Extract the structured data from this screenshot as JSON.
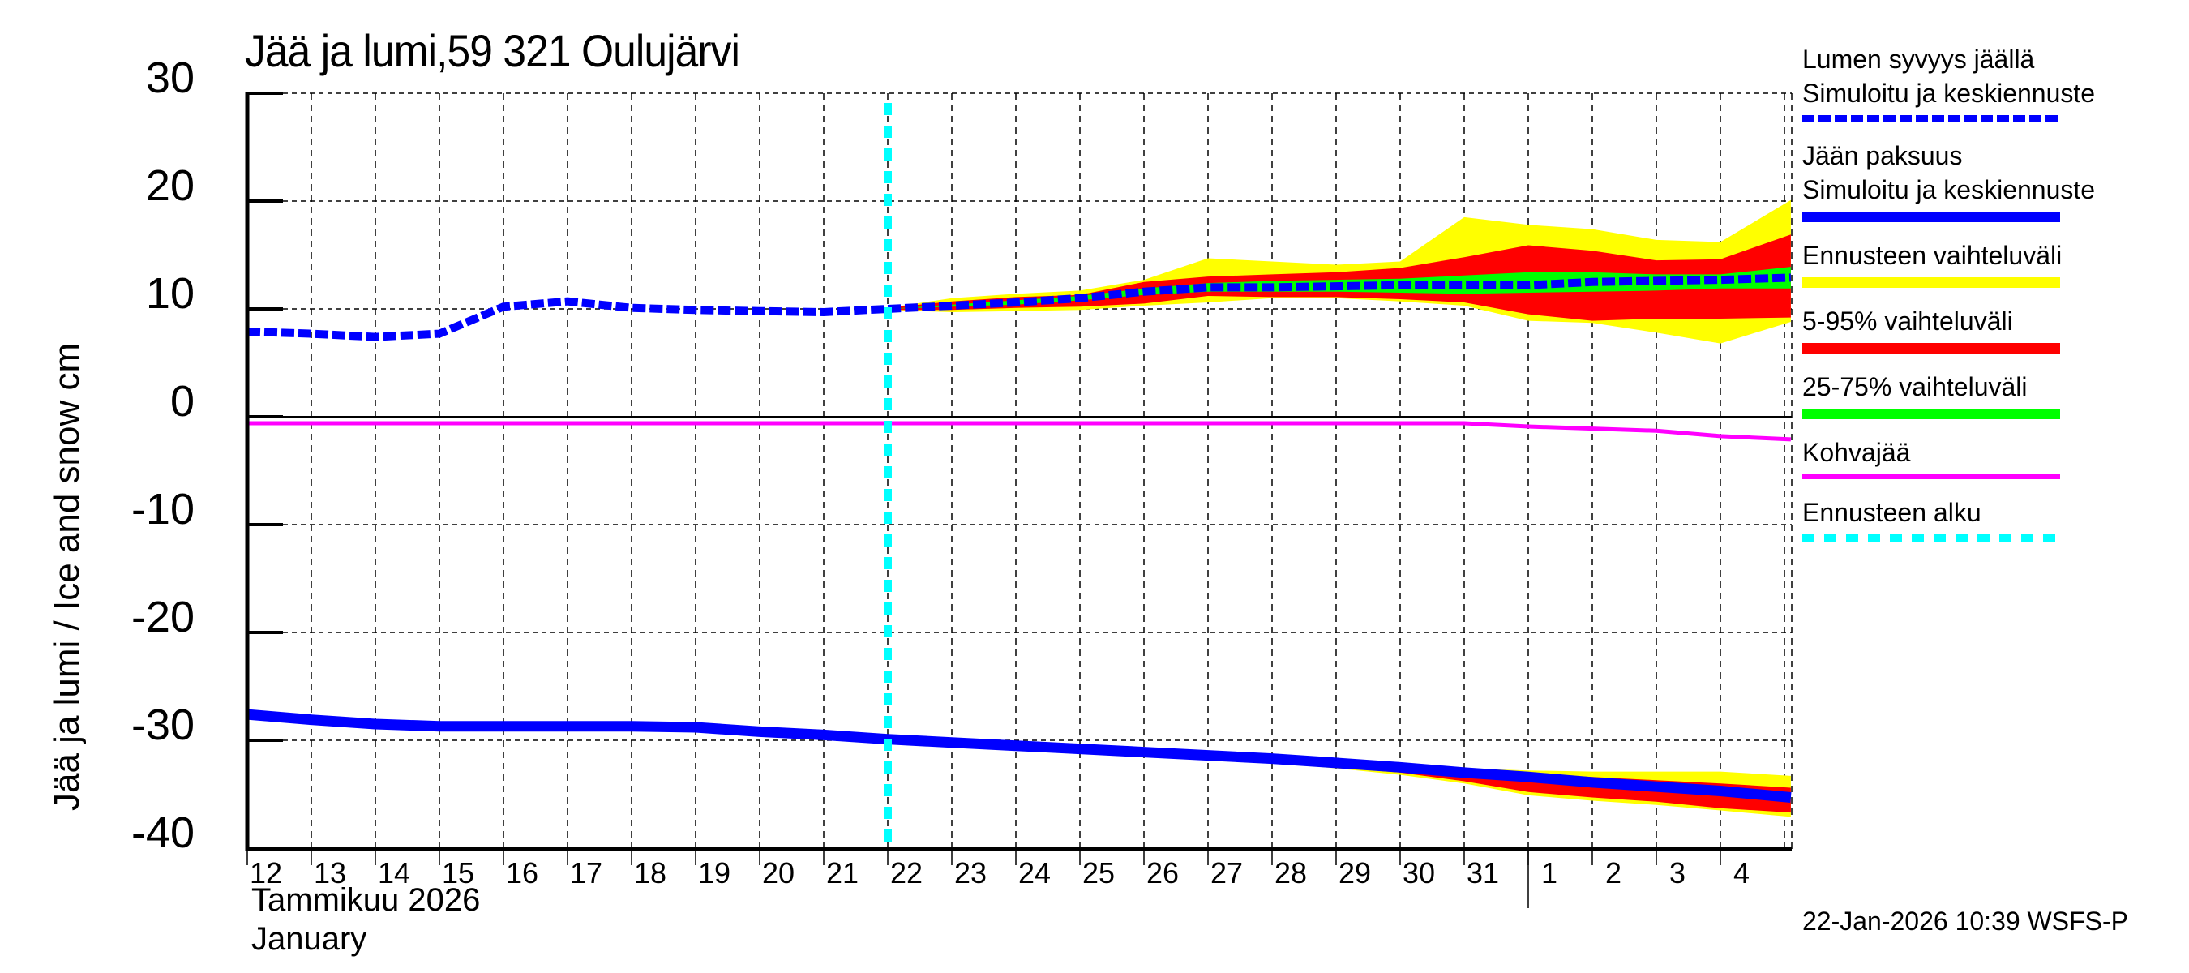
{
  "title": "Jää ja lumi,59 321 Oulujärvi",
  "y_axis_label": "Jää ja lumi / Ice and snow    cm",
  "y_ticks": [
    "30",
    "20",
    "10",
    "0",
    "-10",
    "-20",
    "-30",
    "-40"
  ],
  "x_ticks": [
    "12",
    "13",
    "14",
    "15",
    "16",
    "17",
    "18",
    "19",
    "20",
    "21",
    "22",
    "23",
    "24",
    "25",
    "26",
    "27",
    "28",
    "29",
    "30",
    "31",
    "1",
    "2",
    "3",
    "4"
  ],
  "month_label_fi": "Tammikuu  2026",
  "month_label_en": "January",
  "footer": "22-Jan-2026 10:39 WSFS-P",
  "legend": {
    "snow_title": "Lumen syvyys jäällä",
    "snow_sub": "Simuloitu ja keskiennuste",
    "ice_title": "Jään paksuus",
    "ice_sub": "Simuloitu ja keskiennuste",
    "range": "Ennusteen vaihteluväli",
    "p5_95": "5-95% vaihteluväli",
    "p25_75": "25-75% vaihteluväli",
    "slush": "Kohvajää",
    "forecast_start": "Ennusteen alku"
  },
  "colors": {
    "snow": "#0000ff",
    "ice": "#0000ff",
    "range": "#ffff00",
    "p5_95": "#ff0000",
    "p25_75": "#00ff00",
    "slush": "#ff00ff",
    "forecast_start": "#00ffff",
    "grid": "#000000"
  },
  "chart_data": {
    "type": "line",
    "title": "Jää ja lumi,59 321 Oulujärvi",
    "xlabel": "Tammikuu 2026 / January",
    "ylabel": "Jää ja lumi / Ice and snow cm",
    "ylim": [
      -40,
      30
    ],
    "xlim_day_index": [
      12,
      36.1
    ],
    "x_note": "day index: 12..31 = January 12..31, 32..35 = February 1..4",
    "grid": true,
    "forecast_start_day": 22,
    "x": [
      12,
      13,
      14,
      15,
      16,
      17,
      18,
      19,
      20,
      21,
      22
    ],
    "snow_depth_simulated": [
      7.9,
      7.7,
      7.4,
      7.7,
      10.2,
      10.7,
      10.1,
      9.9,
      9.8,
      9.7,
      10.0
    ],
    "ice_thickness_simulated": [
      -27.6,
      -28.1,
      -28.5,
      -28.7,
      -28.7,
      -28.7,
      -28.7,
      -28.8,
      -29.2,
      -29.5,
      -29.9
    ],
    "slush_ice_simulated": [
      -0.6,
      -0.6,
      -0.6,
      -0.6,
      -0.6,
      -0.6,
      -0.6,
      -0.6,
      -0.6,
      -0.6,
      -0.6
    ],
    "forecast_x": [
      22,
      23,
      24,
      25,
      26,
      27,
      28,
      29,
      30,
      31,
      32,
      33,
      34,
      35,
      36.1
    ],
    "snow_forecast": {
      "median": [
        10.0,
        10.3,
        10.6,
        11.0,
        11.6,
        12.0,
        12.0,
        12.1,
        12.2,
        12.2,
        12.2,
        12.5,
        12.6,
        12.7,
        12.9
      ],
      "range_max": [
        10.1,
        11.0,
        11.4,
        11.7,
        12.7,
        14.7,
        14.4,
        14.1,
        14.4,
        18.5,
        17.8,
        17.4,
        16.4,
        16.2,
        20.1
      ],
      "range_min": [
        9.9,
        9.7,
        9.8,
        9.9,
        10.3,
        10.6,
        11.0,
        11.0,
        10.7,
        10.3,
        8.9,
        8.7,
        7.8,
        6.8,
        8.8
      ],
      "p95": [
        10.1,
        10.7,
        11.1,
        11.3,
        12.5,
        13.0,
        13.2,
        13.4,
        13.8,
        14.8,
        15.9,
        15.4,
        14.5,
        14.6,
        16.9
      ],
      "p5": [
        9.9,
        9.9,
        10.1,
        10.2,
        10.5,
        11.2,
        11.1,
        11.1,
        10.9,
        10.6,
        9.5,
        8.9,
        9.1,
        9.1,
        9.2
      ],
      "p75": [
        10.0,
        10.4,
        10.8,
        11.2,
        11.9,
        12.4,
        12.6,
        12.7,
        12.8,
        13.1,
        13.4,
        13.4,
        13.2,
        13.2,
        13.9
      ],
      "p25": [
        10.0,
        10.2,
        10.4,
        10.8,
        11.3,
        11.6,
        11.6,
        11.6,
        11.5,
        11.4,
        11.5,
        11.6,
        11.7,
        11.9,
        11.9
      ]
    },
    "ice_forecast": {
      "median": [
        -29.9,
        -30.2,
        -30.5,
        -30.8,
        -31.1,
        -31.4,
        -31.7,
        -32.1,
        -32.5,
        -33.0,
        -33.4,
        -33.9,
        -34.3,
        -34.7,
        -35.3
      ],
      "range_max": [
        -29.9,
        -30.1,
        -30.4,
        -30.7,
        -31.0,
        -31.3,
        -31.6,
        -31.9,
        -32.2,
        -32.6,
        -32.8,
        -32.9,
        -32.9,
        -32.9,
        -33.3
      ],
      "range_min": [
        -29.9,
        -30.3,
        -30.6,
        -30.9,
        -31.3,
        -31.7,
        -32.1,
        -32.6,
        -33.2,
        -34.0,
        -35.1,
        -35.6,
        -36.0,
        -36.5,
        -37.1
      ],
      "p95": [
        -29.9,
        -30.1,
        -30.4,
        -30.7,
        -31.0,
        -31.3,
        -31.7,
        -32.0,
        -32.3,
        -32.7,
        -33.1,
        -33.4,
        -33.7,
        -34.0,
        -34.4
      ],
      "p5": [
        -29.9,
        -30.3,
        -30.6,
        -30.9,
        -31.2,
        -31.6,
        -32.0,
        -32.5,
        -33.0,
        -33.8,
        -34.8,
        -35.3,
        -35.7,
        -36.3,
        -36.7
      ],
      "p75": [
        -29.9,
        -30.2,
        -30.5,
        -30.8,
        -31.1,
        -31.4,
        -31.7,
        -32.1,
        -32.5,
        -33.0,
        -33.4,
        -33.9,
        -34.3,
        -34.7,
        -35.2
      ],
      "p25": [
        -29.9,
        -30.2,
        -30.5,
        -30.8,
        -31.1,
        -31.4,
        -31.7,
        -32.1,
        -32.5,
        -33.0,
        -33.5,
        -34.0,
        -34.4,
        -34.9,
        -35.4
      ]
    },
    "slush_forecast": [
      -0.6,
      -0.6,
      -0.6,
      -0.6,
      -0.6,
      -0.6,
      -0.6,
      -0.6,
      -0.6,
      -0.6,
      -0.9,
      -1.1,
      -1.3,
      -1.8,
      -2.1
    ],
    "legend": [
      "Lumen syvyys jäällä – Simuloitu ja keskiennuste",
      "Jään paksuus – Simuloitu ja keskiennuste",
      "Ennusteen vaihteluväli",
      "5-95% vaihteluväli",
      "25-75% vaihteluväli",
      "Kohvajää",
      "Ennusteen alku"
    ],
    "legend_position": "right"
  }
}
